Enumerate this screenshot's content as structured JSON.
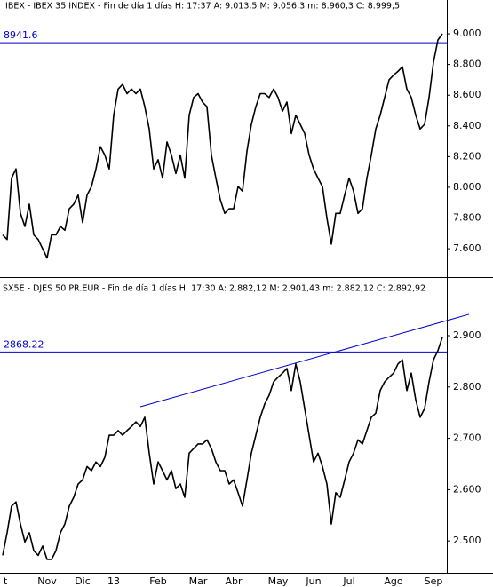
{
  "chart_data": [
    {
      "type": "line",
      "title": ".IBEX - IBEX 35 INDEX - Fin de día 1 días  H: 17:37  A: 9.013,5  M: 9.056,3  m: 8.960,3  C: 8.999,5",
      "color": "#000000",
      "values": [
        7690,
        7660,
        8060,
        8120,
        7830,
        7745,
        7890,
        7690,
        7660,
        7600,
        7540,
        7690,
        7690,
        7745,
        7720,
        7860,
        7890,
        7950,
        7770,
        7950,
        8005,
        8120,
        8265,
        8210,
        8120,
        8470,
        8640,
        8670,
        8610,
        8640,
        8610,
        8640,
        8525,
        8380,
        8120,
        8180,
        8060,
        8295,
        8210,
        8090,
        8210,
        8060,
        8470,
        8585,
        8610,
        8555,
        8525,
        8210,
        8060,
        7920,
        7830,
        7860,
        7860,
        8005,
        7975,
        8235,
        8410,
        8525,
        8610,
        8610,
        8585,
        8640,
        8585,
        8495,
        8555,
        8350,
        8470,
        8410,
        8350,
        8210,
        8120,
        8060,
        8005,
        7800,
        7630,
        7830,
        7830,
        7950,
        8060,
        7975,
        7830,
        7860,
        8060,
        8210,
        8380,
        8470,
        8585,
        8700,
        8730,
        8755,
        8785,
        8640,
        8585,
        8470,
        8380,
        8410,
        8585,
        8815,
        8960,
        9000
      ],
      "ylim": [
        7427,
        9220
      ],
      "yticks": [
        {
          "value": 9000,
          "label": "9.000"
        },
        {
          "value": 8800,
          "label": "8.800"
        },
        {
          "value": 8600,
          "label": "8.600"
        },
        {
          "value": 8400,
          "label": "8.400"
        },
        {
          "value": 8200,
          "label": "8.200"
        },
        {
          "value": 8000,
          "label": "8.000"
        },
        {
          "value": 7800,
          "label": "7.800"
        },
        {
          "value": 7600,
          "label": "7.600"
        }
      ],
      "reference_lines": [
        {
          "value": 8941.6,
          "color": "#0000cc"
        }
      ]
    },
    {
      "type": "line",
      "title": "SX5E - DJES 50 PR.EUR - Fin de día 1 días  H: 17:30  A: 2.882,12  M: 2.901,43  m: 2.882,12  C: 2.892,92",
      "color": "#000000",
      "categories": [
        "t",
        null,
        null,
        null,
        null,
        null,
        null,
        null,
        null,
        null,
        "Nov",
        null,
        null,
        null,
        null,
        null,
        null,
        null,
        "Dic",
        null,
        null,
        null,
        null,
        null,
        null,
        "13",
        null,
        null,
        null,
        null,
        null,
        null,
        null,
        null,
        null,
        "Feb",
        null,
        null,
        null,
        null,
        null,
        null,
        null,
        null,
        "Mar",
        null,
        null,
        null,
        null,
        null,
        null,
        null,
        "Abr",
        null,
        null,
        null,
        null,
        null,
        null,
        null,
        null,
        null,
        "May",
        null,
        null,
        null,
        null,
        null,
        null,
        null,
        "Jun",
        null,
        null,
        null,
        null,
        null,
        null,
        null,
        "Jul",
        null,
        null,
        null,
        null,
        null,
        null,
        null,
        null,
        null,
        "Ago",
        null,
        null,
        null,
        null,
        null,
        null,
        null,
        null,
        "Sep",
        null,
        null
      ],
      "values": [
        2472,
        2516,
        2568,
        2576,
        2533,
        2498,
        2516,
        2481,
        2472,
        2490,
        2464,
        2464,
        2481,
        2516,
        2533,
        2568,
        2585,
        2611,
        2619,
        2645,
        2637,
        2654,
        2645,
        2663,
        2706,
        2706,
        2715,
        2706,
        2715,
        2723,
        2732,
        2723,
        2741,
        2671,
        2611,
        2654,
        2637,
        2619,
        2637,
        2602,
        2611,
        2585,
        2671,
        2680,
        2689,
        2689,
        2697,
        2680,
        2654,
        2637,
        2637,
        2611,
        2619,
        2594,
        2568,
        2619,
        2671,
        2706,
        2741,
        2767,
        2784,
        2810,
        2819,
        2827,
        2836,
        2793,
        2845,
        2810,
        2758,
        2706,
        2654,
        2671,
        2645,
        2611,
        2533,
        2594,
        2585,
        2619,
        2654,
        2671,
        2697,
        2689,
        2715,
        2741,
        2749,
        2793,
        2810,
        2819,
        2827,
        2845,
        2853,
        2793,
        2827,
        2775,
        2741,
        2758,
        2810,
        2853,
        2871,
        2897
      ],
      "ylim": [
        2438,
        3009
      ],
      "yticks": [
        {
          "value": 2900,
          "label": "2.900"
        },
        {
          "value": 2800,
          "label": "2.800"
        },
        {
          "value": 2700,
          "label": "2.700"
        },
        {
          "value": 2600,
          "label": "2.600"
        },
        {
          "value": 2500,
          "label": "2.500"
        }
      ],
      "reference_lines": [
        {
          "value": 2868.22,
          "color": "#0000cc"
        }
      ],
      "trend_line": {
        "x": [
          31,
          105
        ],
        "values": [
          2761.5,
          2941.6
        ],
        "color": "#0000cc"
      }
    }
  ]
}
